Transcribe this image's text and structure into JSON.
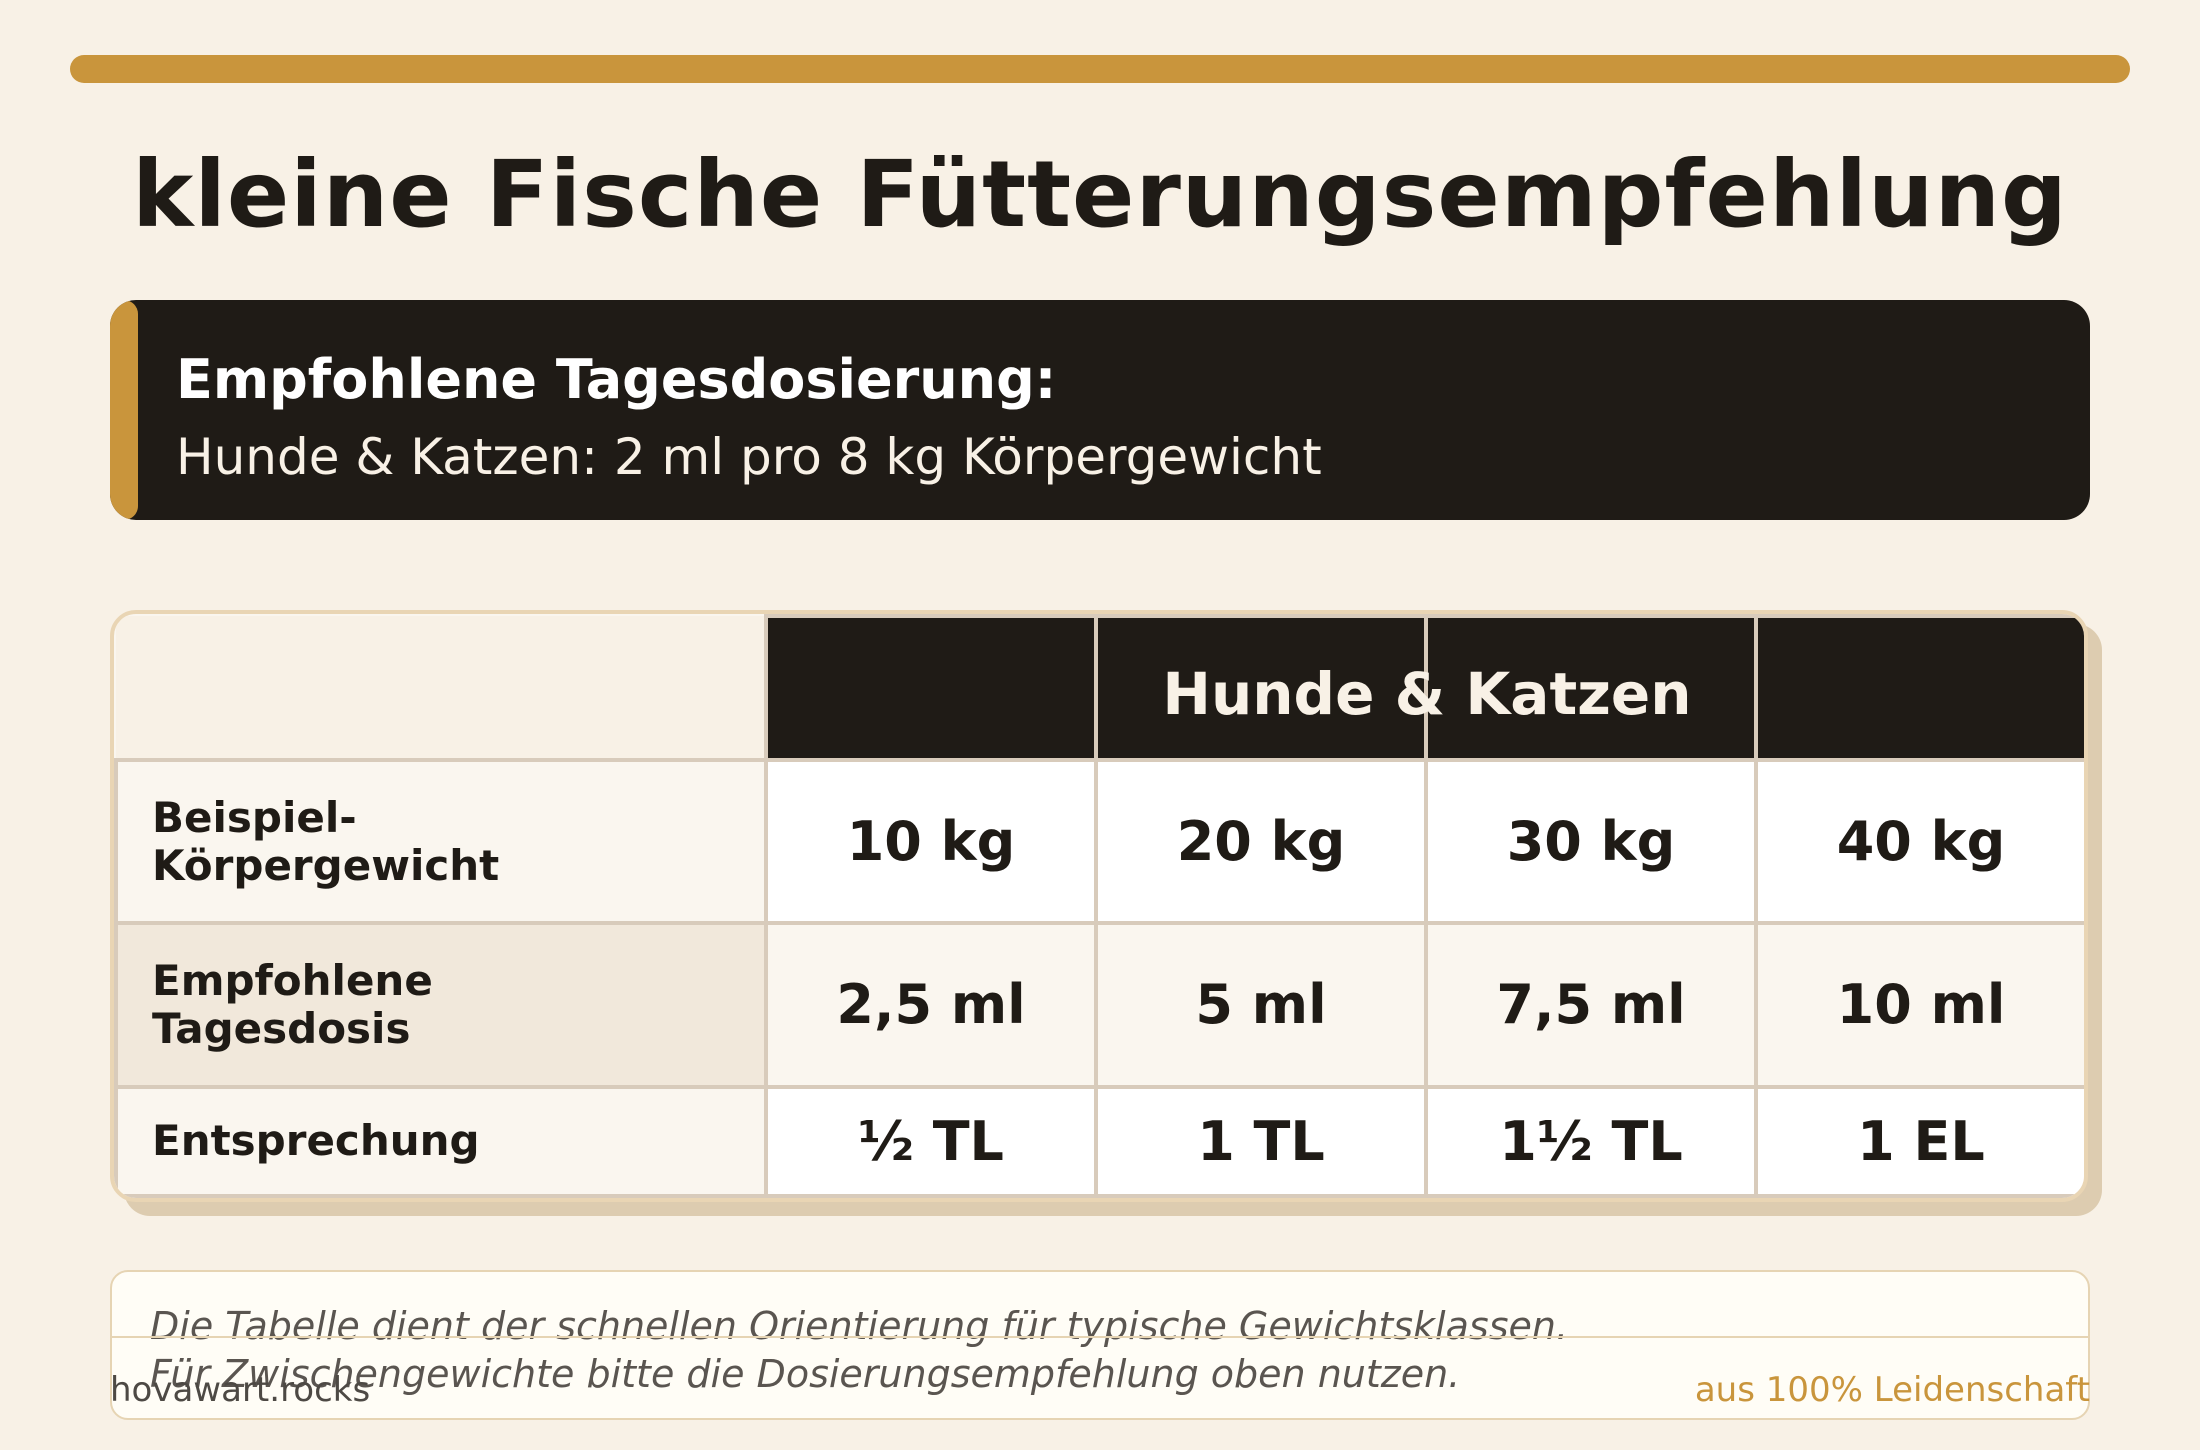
{
  "title": "kleine Fische Fütterungsempfehlung",
  "dosage": {
    "heading": "Empfohlene Tagesdosierung:",
    "text": "Hunde & Katzen: 2 ml pro 8 kg Körpergewicht"
  },
  "table": {
    "header": "Hunde & Katzen",
    "rows": [
      {
        "label": "Beispiel-\nKörpergewicht",
        "cells": [
          "10 kg",
          "20 kg",
          "30 kg",
          "40 kg"
        ]
      },
      {
        "label": "Empfohlene\nTagesdosis",
        "cells": [
          "2,5 ml",
          "5 ml",
          "7,5 ml",
          "10 ml"
        ]
      },
      {
        "label": "Entsprechung",
        "cells": [
          "½ TL",
          "1 TL",
          "1½ TL",
          "1 EL"
        ]
      }
    ]
  },
  "note": {
    "line1": "Die Tabelle dient der schnellen Orientierung für typische Gewichtsklassen.",
    "line2": "Für Zwischengewichte bitte die Dosierungsempfehlung oben nutzen."
  },
  "footer": {
    "left": "hovawart.rocks",
    "right": "aus 100% Leidenschaft"
  },
  "colors": {
    "accent": "#c9953c",
    "dark": "#1f1b16",
    "background": "#f8f1e6"
  }
}
